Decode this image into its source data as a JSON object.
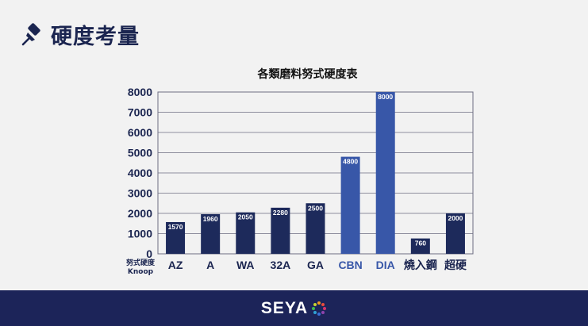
{
  "page": {
    "title": "硬度考量"
  },
  "brand": {
    "name": "SEYA"
  },
  "colors": {
    "background": "#f2f2f2",
    "title": "#1b2550",
    "bar_dark": "#1d2a5b",
    "bar_highlight": "#3857a8",
    "footer": "#1c2459",
    "grid": "#6e6e82"
  },
  "chart_data": {
    "type": "bar",
    "title": "各類磨料努式硬度表",
    "ylabel": "努式硬度 Knoop",
    "ylabel_lines": [
      "努式硬度",
      "Knoop"
    ],
    "xlabel": "",
    "ylim": [
      0,
      8000
    ],
    "yticks": [
      0,
      1000,
      2000,
      3000,
      4000,
      5000,
      6000,
      7000,
      8000
    ],
    "grid": true,
    "categories": [
      "AZ",
      "A",
      "WA",
      "32A",
      "GA",
      "CBN",
      "DIA",
      "燒入鋼",
      "超硬"
    ],
    "values": [
      1570,
      1960,
      2050,
      2280,
      2500,
      4800,
      8000,
      760,
      2000
    ],
    "highlight": [
      "CBN",
      "DIA"
    ]
  }
}
